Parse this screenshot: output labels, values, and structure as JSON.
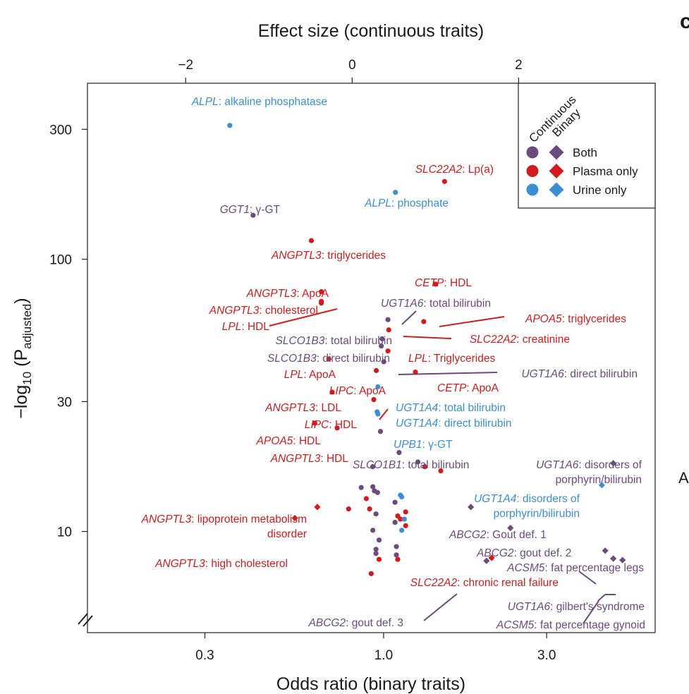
{
  "colors": {
    "both": "#6b4a7e",
    "plasma": "#d01c1c",
    "urine": "#3a8fd4"
  },
  "side_labels": {
    "panel_letter": "c",
    "right_label": "A"
  },
  "chart_data": {
    "type": "scatter",
    "title": "",
    "top_axis": {
      "label": "Effect size (continuous traits)",
      "range": [
        -3.18,
        3.64
      ],
      "ticks": [
        -2,
        0,
        2
      ],
      "tick_labels": [
        "−2",
        "0",
        "2"
      ]
    },
    "bottom_axis": {
      "label": "Odds ratio (binary traits)",
      "scale": "log",
      "range": [
        0.136,
        6.23
      ],
      "ticks": [
        0.3,
        1.0,
        3.0
      ],
      "tick_labels": [
        "0.3",
        "1.0",
        "3.0"
      ]
    },
    "y_axis": {
      "label": "−log10 (P adjusted)",
      "label_base": "−log",
      "label_sub1": "10",
      "label_mid": " (P",
      "label_sub2": "adjusted",
      "label_end": ")",
      "scale": "log",
      "range": [
        4.25,
        443
      ],
      "ticks": [
        10,
        30,
        100,
        300
      ],
      "tick_labels": [
        "10",
        "30",
        "100",
        "300"
      ]
    },
    "legend": {
      "position": "top-right",
      "headers": [
        "Continuous",
        "Binary"
      ],
      "entries": [
        {
          "label": "Both",
          "category": "both"
        },
        {
          "label": "Plasma only",
          "category": "plasma"
        },
        {
          "label": "Urine only",
          "category": "urine"
        }
      ]
    },
    "points": [
      {
        "type": "continuous",
        "x": -1.47,
        "y": 310,
        "category": "urine"
      },
      {
        "type": "continuous",
        "x": 1.11,
        "y": 193,
        "category": "plasma"
      },
      {
        "type": "continuous",
        "x": 0.52,
        "y": 176,
        "category": "urine"
      },
      {
        "type": "continuous",
        "x": -1.19,
        "y": 145,
        "category": "both"
      },
      {
        "type": "continuous",
        "x": -0.49,
        "y": 117,
        "category": "plasma"
      },
      {
        "type": "continuous",
        "x": 1.0,
        "y": 81,
        "category": "plasma"
      },
      {
        "type": "continuous",
        "x": -0.37,
        "y": 76,
        "category": "plasma"
      },
      {
        "type": "continuous",
        "x": -0.37,
        "y": 70,
        "category": "plasma"
      },
      {
        "type": "continuous",
        "x": -0.37,
        "y": 69,
        "category": "plasma"
      },
      {
        "type": "continuous",
        "x": 0.43,
        "y": 60,
        "category": "both"
      },
      {
        "type": "continuous",
        "x": 0.86,
        "y": 59,
        "category": "plasma"
      },
      {
        "type": "continuous",
        "x": 0.44,
        "y": 55,
        "category": "plasma"
      },
      {
        "type": "continuous",
        "x": 0.36,
        "y": 51,
        "category": "both"
      },
      {
        "type": "continuous",
        "x": 0.35,
        "y": 48,
        "category": "both"
      },
      {
        "type": "continuous",
        "x": 0.43,
        "y": 46,
        "category": "plasma"
      },
      {
        "type": "continuous",
        "x": 0.38,
        "y": 42,
        "category": "both"
      },
      {
        "type": "continuous",
        "x": -0.28,
        "y": 43,
        "category": "plasma"
      },
      {
        "type": "continuous",
        "x": 0.29,
        "y": 39,
        "category": "plasma"
      },
      {
        "type": "continuous",
        "x": 0.76,
        "y": 38.5,
        "category": "plasma"
      },
      {
        "type": "continuous",
        "x": 0.31,
        "y": 34,
        "category": "urine"
      },
      {
        "type": "continuous",
        "x": -0.24,
        "y": 32.5,
        "category": "plasma"
      },
      {
        "type": "continuous",
        "x": 0.26,
        "y": 30.5,
        "category": "plasma"
      },
      {
        "type": "continuous",
        "x": 0.3,
        "y": 27.5,
        "category": "urine"
      },
      {
        "type": "continuous",
        "x": 0.31,
        "y": 27.0,
        "category": "urine"
      },
      {
        "type": "continuous",
        "x": -0.45,
        "y": 25.0,
        "category": "plasma"
      },
      {
        "type": "continuous",
        "x": -0.18,
        "y": 24.0,
        "category": "plasma"
      },
      {
        "type": "continuous",
        "x": 0.34,
        "y": 23.3,
        "category": "both"
      },
      {
        "type": "binary",
        "x": 1.11,
        "y": 19.5,
        "category": "both"
      },
      {
        "type": "binary",
        "x": 1.26,
        "y": 18.0,
        "category": "both"
      },
      {
        "type": "binary",
        "x": 0.93,
        "y": 17.3,
        "category": "both"
      },
      {
        "type": "binary",
        "x": 1.32,
        "y": 17.3,
        "category": "plasma"
      },
      {
        "type": "binary",
        "x": 1.47,
        "y": 16.7,
        "category": "plasma"
      },
      {
        "type": "binary",
        "x": 0.86,
        "y": 14.5,
        "category": "both"
      },
      {
        "type": "binary",
        "x": 0.93,
        "y": 14.6,
        "category": "both"
      },
      {
        "type": "binary",
        "x": 0.94,
        "y": 14.1,
        "category": "both"
      },
      {
        "type": "binary",
        "x": 0.96,
        "y": 13.9,
        "category": "both"
      },
      {
        "type": "binary",
        "x": 1.12,
        "y": 13.6,
        "category": "urine"
      },
      {
        "type": "binary",
        "x": 1.13,
        "y": 13.4,
        "category": "urine"
      },
      {
        "type": "binary",
        "x": 0.89,
        "y": 13.2,
        "category": "plasma"
      },
      {
        "type": "binary",
        "x": 1.08,
        "y": 12.8,
        "category": "both"
      },
      {
        "type": "binary",
        "x": 0.79,
        "y": 12.1,
        "category": "plasma"
      },
      {
        "type": "binary",
        "x": 0.91,
        "y": 12.1,
        "category": "plasma"
      },
      {
        "type": "binary",
        "x": 1.16,
        "y": 11.8,
        "category": "plasma"
      },
      {
        "type": "binary",
        "x": 0.95,
        "y": 11.6,
        "category": "both"
      },
      {
        "type": "binary",
        "x": 1.1,
        "y": 11.4,
        "category": "plasma"
      },
      {
        "type": "binary",
        "x": 1.12,
        "y": 11.1,
        "category": "plasma"
      },
      {
        "type": "binary",
        "x": 1.15,
        "y": 11.1,
        "category": "urine"
      },
      {
        "type": "binary",
        "x": 1.08,
        "y": 10.8,
        "category": "both"
      },
      {
        "type": "binary",
        "x": 1.16,
        "y": 10.5,
        "category": "plasma"
      },
      {
        "type": "binary",
        "x": 1.13,
        "y": 10.1,
        "category": "urine"
      },
      {
        "type": "binary",
        "x": 0.93,
        "y": 10.1,
        "category": "both"
      },
      {
        "type": "binary",
        "x": 0.97,
        "y": 9.3,
        "category": "both"
      },
      {
        "type": "binary",
        "x": 1.09,
        "y": 8.8,
        "category": "both"
      },
      {
        "type": "binary",
        "x": 0.95,
        "y": 8.6,
        "category": "both"
      },
      {
        "type": "binary",
        "x": 0.95,
        "y": 8.3,
        "category": "both"
      },
      {
        "type": "binary",
        "x": 1.09,
        "y": 8.2,
        "category": "both"
      },
      {
        "type": "binary",
        "x": 0.97,
        "y": 7.9,
        "category": "plasma"
      },
      {
        "type": "binary",
        "x": 1.1,
        "y": 7.9,
        "category": "plasma"
      },
      {
        "type": "binary",
        "x": 0.92,
        "y": 7.0,
        "category": "plasma"
      },
      {
        "type": "binary",
        "x": 0.64,
        "y": 12.3,
        "category": "plasma",
        "shape": "diamond"
      },
      {
        "type": "binary",
        "x": 0.55,
        "y": 11.2,
        "category": "plasma",
        "shape": "diamond"
      },
      {
        "type": "binary",
        "x": 1.8,
        "y": 12.3,
        "category": "both",
        "shape": "diamond"
      },
      {
        "type": "binary",
        "x": 2.35,
        "y": 10.3,
        "category": "both",
        "shape": "diamond"
      },
      {
        "type": "binary",
        "x": 4.35,
        "y": 14.8,
        "category": "urine",
        "shape": "diamond"
      },
      {
        "type": "binary",
        "x": 4.7,
        "y": 17.8,
        "category": "both",
        "shape": "diamond"
      },
      {
        "type": "binary",
        "x": 4.45,
        "y": 8.5,
        "category": "both",
        "shape": "diamond"
      },
      {
        "type": "binary",
        "x": 2.07,
        "y": 8.0,
        "category": "plasma",
        "shape": "diamond"
      },
      {
        "type": "binary",
        "x": 2.0,
        "y": 7.8,
        "category": "both",
        "shape": "diamond"
      },
      {
        "type": "binary",
        "x": 4.7,
        "y": 7.95,
        "category": "both",
        "shape": "diamond"
      },
      {
        "type": "binary",
        "x": 5.0,
        "y": 7.85,
        "category": "both",
        "shape": "diamond"
      }
    ],
    "annotations": [
      {
        "gene": "ALPL",
        "trait": ": alkaline phosphatase",
        "category": "urine"
      },
      {
        "gene": "SLC22A2",
        "trait": ": Lp(a)",
        "category": "plasma"
      },
      {
        "gene": "ALPL",
        "trait": ": phosphate",
        "category": "urine"
      },
      {
        "gene": "GGT1",
        "trait": ": γ-GT",
        "category": "both"
      },
      {
        "gene": "ANGPTL3",
        "trait": ": triglycerides",
        "category": "plasma"
      },
      {
        "gene": "CETP",
        "trait": ": HDL",
        "category": "plasma"
      },
      {
        "gene": "ANGPTL3",
        "trait": ": ApoA",
        "category": "plasma"
      },
      {
        "gene": "UGT1A6",
        "trait": ": total bilirubin",
        "category": "both"
      },
      {
        "gene": "ANGPTL3",
        "trait": ": cholesterol",
        "category": "plasma"
      },
      {
        "gene": "APOA5",
        "trait": ": triglycerides",
        "category": "plasma"
      },
      {
        "gene": "LPL",
        "trait": ": HDL",
        "category": "plasma"
      },
      {
        "gene": "SLCO1B3",
        "trait": ": total bilirubin",
        "category": "both"
      },
      {
        "gene": "SLC22A2",
        "trait": ": creatinine",
        "category": "plasma"
      },
      {
        "gene": "SLCO1B3",
        "trait": ": direct bilirubin",
        "category": "both"
      },
      {
        "gene": "LPL",
        "trait": ": Triglycerides",
        "category": "plasma"
      },
      {
        "gene": "LPL",
        "trait": ": ApoA",
        "category": "plasma"
      },
      {
        "gene": "UGT1A6",
        "trait": ": direct bilirubin",
        "category": "both"
      },
      {
        "gene": "LIPC",
        "trait": ": ApoA",
        "category": "plasma"
      },
      {
        "gene": "CETP",
        "trait": ": ApoA",
        "category": "plasma"
      },
      {
        "gene": "ANGPTL3",
        "trait": ": LDL",
        "category": "plasma"
      },
      {
        "gene": "UGT1A4",
        "trait": ": total bilirubin",
        "category": "urine"
      },
      {
        "gene": "LIPC",
        "trait": ": HDL",
        "category": "plasma"
      },
      {
        "gene": "UGT1A4",
        "trait": ": direct bilirubin",
        "category": "urine"
      },
      {
        "gene": "APOA5",
        "trait": ": HDL",
        "category": "plasma"
      },
      {
        "gene": "UPB1",
        "trait": ": γ-GT",
        "category": "urine"
      },
      {
        "gene": "ANGPTL3",
        "trait": ": HDL",
        "category": "plasma"
      },
      {
        "gene": "SLCO1B1",
        "trait": ": total bilirubin",
        "category": "both"
      },
      {
        "gene": "UGT1A6",
        "trait": ": disorders of",
        "trait_line2": "porphyrin/bilirubin",
        "category": "both"
      },
      {
        "gene": "UGT1A4",
        "trait": ": disorders of",
        "trait_line2": "porphyrin/bilirubin",
        "category": "urine"
      },
      {
        "gene": "ANGPTL3",
        "trait": ": lipoprotein metabolism",
        "trait_line2": "disorder",
        "category": "plasma"
      },
      {
        "gene": "ABCG2",
        "trait": ": Gout def. 1",
        "category": "both"
      },
      {
        "gene": "ABCG2",
        "trait": ": gout def. 2",
        "category": "both"
      },
      {
        "gene": "ANGPTL3",
        "trait": ": high cholesterol",
        "category": "plasma"
      },
      {
        "gene": "ACSM5",
        "trait": ": fat percentage legs",
        "category": "both"
      },
      {
        "gene": "SLC22A2",
        "trait": ": chronic renal failure",
        "category": "plasma"
      },
      {
        "gene": "UGT1A6",
        "trait": ": gilbert's syndrome",
        "category": "both"
      },
      {
        "gene": "ABCG2",
        "trait": ": gout def. 3",
        "category": "both"
      },
      {
        "gene": "ACSM5",
        "trait": ": fat percentage gynoid",
        "category": "both"
      }
    ]
  }
}
